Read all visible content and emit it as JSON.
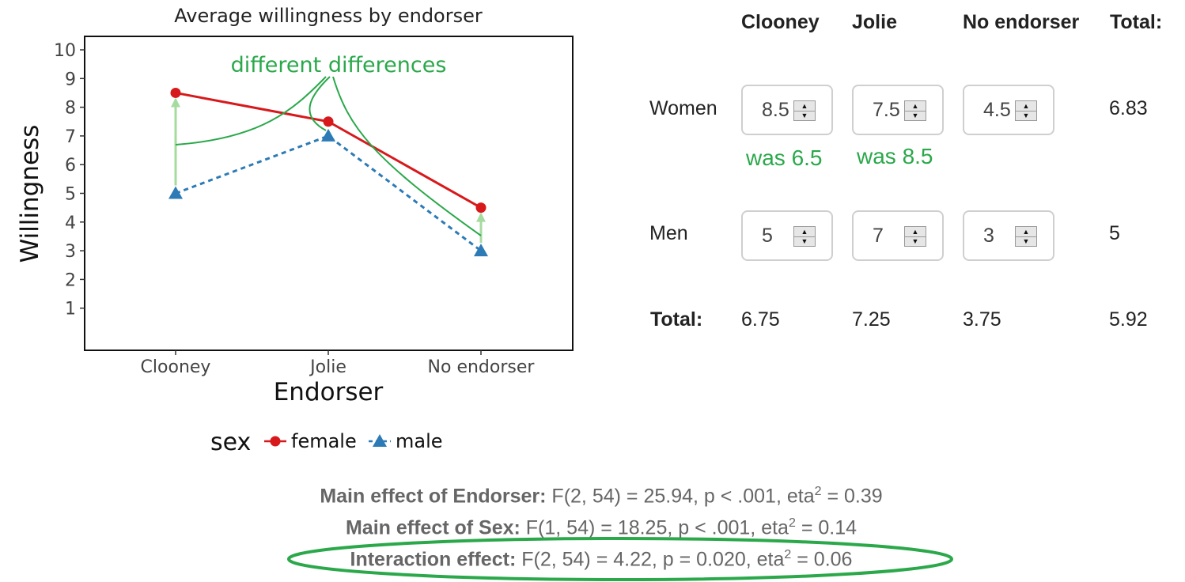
{
  "chart_data": {
    "type": "line",
    "title": "Average willingness by endorser",
    "xlabel": "Endorser",
    "ylabel": "Willingness",
    "categories": [
      "Clooney",
      "Jolie",
      "No endorser"
    ],
    "ylim": [
      0,
      10.5
    ],
    "yticks": [
      "1",
      "2",
      "3",
      "4",
      "5",
      "6",
      "7",
      "8",
      "9",
      "10"
    ],
    "series": [
      {
        "name": "female",
        "values": [
          8.5,
          7.5,
          4.5
        ],
        "color": "#d7191c",
        "marker": "circle",
        "dash": "solid"
      },
      {
        "name": "male",
        "values": [
          5,
          7,
          3
        ],
        "color": "#2c7bb6",
        "marker": "triangle",
        "dash": "dashed"
      }
    ],
    "legend_title": "sex",
    "legend_position": "bottom",
    "annotation": "different differences",
    "annotation_color": "#2aa84a",
    "arrow_color": "#a6dba0"
  },
  "table": {
    "columns": [
      "Clooney",
      "Jolie",
      "No endorser",
      "Total:"
    ],
    "rows": [
      {
        "label": "Women",
        "inputs": [
          "8.5",
          "7.5",
          "4.5"
        ],
        "total": "6.83",
        "notes": [
          "was 6.5",
          "was 8.5"
        ]
      },
      {
        "label": "Men",
        "inputs": [
          "5",
          "7",
          "3"
        ],
        "total": "5"
      }
    ],
    "totals": {
      "label": "Total:",
      "values": [
        "6.75",
        "7.25",
        "3.75"
      ],
      "grand": "5.92"
    }
  },
  "stats": [
    {
      "label": "Main effect of Endorser:",
      "text": " F(2, 54) = 25.94, p < .001, eta",
      "sup": "2",
      "tail": " = 0.39"
    },
    {
      "label": "Main effect of Sex:",
      "text": " F(1, 54) = 18.25, p < .001, eta",
      "sup": "2",
      "tail": " = 0.14"
    },
    {
      "label": "Interaction effect:",
      "text": " F(2, 54) = 4.22, p = 0.020, eta",
      "sup": "2",
      "tail": " = 0.06"
    }
  ],
  "highlight_color": "#2aa84a"
}
